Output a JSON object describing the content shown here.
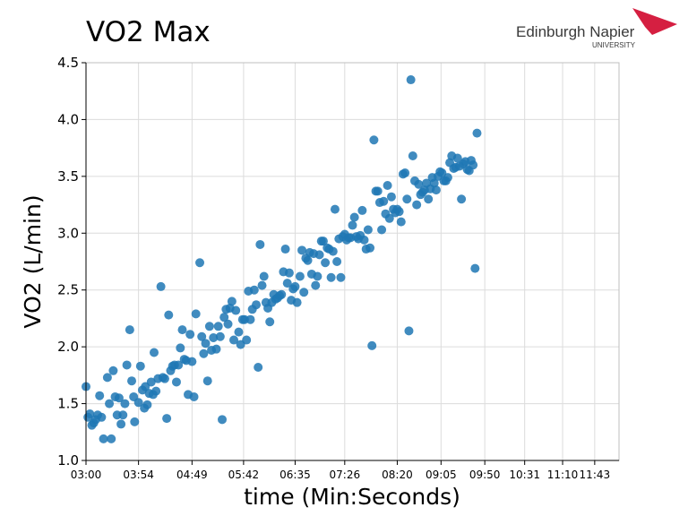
{
  "title": "VO2 Max",
  "logo": {
    "name": "Edinburgh Napier",
    "sub": "UNIVERSITY",
    "accent": "#d51f41"
  },
  "chart_data": {
    "type": "scatter",
    "title": "VO2 Max",
    "xlabel": "time (Min:Seconds)",
    "ylabel": "VO2  (L/min)",
    "ylim": [
      1.0,
      4.5
    ],
    "xlim_seconds": [
      180,
      728
    ],
    "x_ticks": [
      "03:00",
      "03:54",
      "04:49",
      "05:42",
      "06:35",
      "07:26",
      "08:20",
      "09:05",
      "09:50",
      "10:31",
      "11:10",
      "11:43"
    ],
    "y_ticks": [
      "1.0",
      "1.5",
      "2.0",
      "2.5",
      "3.0",
      "3.5",
      "4.0",
      "4.5"
    ],
    "grid": true,
    "color": "#1f77b4",
    "points": [
      [
        "03:00",
        1.65
      ],
      [
        "03:02",
        1.38
      ],
      [
        "03:04",
        1.41
      ],
      [
        "03:06",
        1.31
      ],
      [
        "03:08",
        1.33
      ],
      [
        "03:10",
        1.36
      ],
      [
        "03:12",
        1.4
      ],
      [
        "03:14",
        1.57
      ],
      [
        "03:16",
        1.38
      ],
      [
        "03:18",
        1.19
      ],
      [
        "03:22",
        1.73
      ],
      [
        "03:24",
        1.5
      ],
      [
        "03:26",
        1.19
      ],
      [
        "03:28",
        1.79
      ],
      [
        "03:30",
        1.56
      ],
      [
        "03:32",
        1.4
      ],
      [
        "03:34",
        1.55
      ],
      [
        "03:36",
        1.32
      ],
      [
        "03:38",
        1.4
      ],
      [
        "03:40",
        1.5
      ],
      [
        "03:42",
        1.84
      ],
      [
        "03:45",
        2.15
      ],
      [
        "03:47",
        1.7
      ],
      [
        "03:49",
        1.56
      ],
      [
        "03:50",
        1.34
      ],
      [
        "03:54",
        1.51
      ],
      [
        "03:56",
        1.83
      ],
      [
        "03:58",
        1.62
      ],
      [
        "04:00",
        1.46
      ],
      [
        "04:01",
        1.65
      ],
      [
        "04:03",
        1.49
      ],
      [
        "04:05",
        1.59
      ],
      [
        "04:07",
        1.69
      ],
      [
        "04:09",
        1.58
      ],
      [
        "04:10",
        1.95
      ],
      [
        "04:12",
        1.61
      ],
      [
        "04:14",
        1.72
      ],
      [
        "04:17",
        2.53
      ],
      [
        "04:19",
        1.73
      ],
      [
        "04:21",
        1.72
      ],
      [
        "04:23",
        1.37
      ],
      [
        "04:25",
        2.28
      ],
      [
        "04:27",
        1.79
      ],
      [
        "04:29",
        1.83
      ],
      [
        "04:31",
        1.84
      ],
      [
        "04:33",
        1.69
      ],
      [
        "04:35",
        1.84
      ],
      [
        "04:37",
        1.99
      ],
      [
        "04:39",
        2.15
      ],
      [
        "04:41",
        1.89
      ],
      [
        "04:43",
        1.88
      ],
      [
        "04:45",
        1.58
      ],
      [
        "04:47",
        2.11
      ],
      [
        "04:49",
        1.87
      ],
      [
        "04:51",
        1.56
      ],
      [
        "04:53",
        2.29
      ],
      [
        "04:57",
        2.74
      ],
      [
        "04:59",
        2.09
      ],
      [
        "05:01",
        1.94
      ],
      [
        "05:03",
        2.03
      ],
      [
        "05:05",
        1.7
      ],
      [
        "05:07",
        2.18
      ],
      [
        "05:09",
        1.97
      ],
      [
        "05:11",
        2.08
      ],
      [
        "05:14",
        1.98
      ],
      [
        "05:16",
        2.18
      ],
      [
        "05:18",
        2.09
      ],
      [
        "05:20",
        1.36
      ],
      [
        "05:22",
        2.26
      ],
      [
        "05:24",
        2.33
      ],
      [
        "05:26",
        2.2
      ],
      [
        "05:28",
        2.34
      ],
      [
        "05:30",
        2.4
      ],
      [
        "05:32",
        2.06
      ],
      [
        "05:34",
        2.32
      ],
      [
        "05:37",
        2.13
      ],
      [
        "05:39",
        2.02
      ],
      [
        "05:41",
        2.24
      ],
      [
        "05:43",
        2.24
      ],
      [
        "05:45",
        2.06
      ],
      [
        "05:47",
        2.49
      ],
      [
        "05:49",
        2.24
      ],
      [
        "05:51",
        2.33
      ],
      [
        "05:53",
        2.5
      ],
      [
        "05:55",
        2.37
      ],
      [
        "05:57",
        1.82
      ],
      [
        "05:59",
        2.9
      ],
      [
        "06:01",
        2.54
      ],
      [
        "06:03",
        2.62
      ],
      [
        "06:05",
        2.39
      ],
      [
        "06:07",
        2.34
      ],
      [
        "06:09",
        2.22
      ],
      [
        "06:11",
        2.39
      ],
      [
        "06:13",
        2.46
      ],
      [
        "06:15",
        2.42
      ],
      [
        "06:17",
        2.43
      ],
      [
        "06:19",
        2.45
      ],
      [
        "06:21",
        2.46
      ],
      [
        "06:23",
        2.66
      ],
      [
        "06:25",
        2.86
      ],
      [
        "06:27",
        2.56
      ],
      [
        "06:29",
        2.65
      ],
      [
        "06:31",
        2.41
      ],
      [
        "06:33",
        2.51
      ],
      [
        "06:35",
        2.53
      ],
      [
        "06:37",
        2.39
      ],
      [
        "06:40",
        2.62
      ],
      [
        "06:42",
        2.85
      ],
      [
        "06:44",
        2.48
      ],
      [
        "06:46",
        2.78
      ],
      [
        "06:48",
        2.76
      ],
      [
        "06:50",
        2.83
      ],
      [
        "06:52",
        2.64
      ],
      [
        "06:54",
        2.82
      ],
      [
        "06:56",
        2.54
      ],
      [
        "06:58",
        2.62
      ],
      [
        "07:00",
        2.81
      ],
      [
        "07:02",
        2.93
      ],
      [
        "07:04",
        2.93
      ],
      [
        "07:06",
        2.74
      ],
      [
        "07:08",
        2.87
      ],
      [
        "07:10",
        2.86
      ],
      [
        "07:12",
        2.61
      ],
      [
        "07:14",
        2.84
      ],
      [
        "07:16",
        3.21
      ],
      [
        "07:18",
        2.75
      ],
      [
        "07:20",
        2.95
      ],
      [
        "07:22",
        2.61
      ],
      [
        "07:24",
        2.97
      ],
      [
        "07:26",
        2.99
      ],
      [
        "07:28",
        2.94
      ],
      [
        "07:30",
        2.96
      ],
      [
        "07:32",
        2.96
      ],
      [
        "07:34",
        3.07
      ],
      [
        "07:36",
        3.14
      ],
      [
        "07:38",
        2.97
      ],
      [
        "07:40",
        2.95
      ],
      [
        "07:42",
        2.98
      ],
      [
        "07:44",
        3.2
      ],
      [
        "07:46",
        2.94
      ],
      [
        "07:48",
        2.86
      ],
      [
        "07:50",
        3.03
      ],
      [
        "07:52",
        2.87
      ],
      [
        "07:54",
        2.01
      ],
      [
        "07:56",
        3.82
      ],
      [
        "07:58",
        3.37
      ],
      [
        "08:00",
        3.37
      ],
      [
        "08:02",
        3.27
      ],
      [
        "08:04",
        3.03
      ],
      [
        "08:06",
        3.28
      ],
      [
        "08:08",
        3.17
      ],
      [
        "08:10",
        3.42
      ],
      [
        "08:12",
        3.13
      ],
      [
        "08:14",
        3.32
      ],
      [
        "08:16",
        3.21
      ],
      [
        "08:18",
        3.18
      ],
      [
        "08:20",
        3.21
      ],
      [
        "08:22",
        3.19
      ],
      [
        "08:24",
        3.1
      ],
      [
        "08:26",
        3.52
      ],
      [
        "08:28",
        3.53
      ],
      [
        "08:30",
        3.3
      ],
      [
        "08:32",
        2.14
      ],
      [
        "08:34",
        4.35
      ],
      [
        "08:36",
        3.68
      ],
      [
        "08:38",
        3.46
      ],
      [
        "08:40",
        3.25
      ],
      [
        "08:42",
        3.43
      ],
      [
        "08:44",
        3.34
      ],
      [
        "08:46",
        3.36
      ],
      [
        "08:48",
        3.38
      ],
      [
        "08:50",
        3.44
      ],
      [
        "08:52",
        3.3
      ],
      [
        "08:54",
        3.39
      ],
      [
        "08:56",
        3.49
      ],
      [
        "08:58",
        3.44
      ],
      [
        "09:00",
        3.38
      ],
      [
        "09:02",
        3.5
      ],
      [
        "09:04",
        3.54
      ],
      [
        "09:06",
        3.53
      ],
      [
        "09:08",
        3.46
      ],
      [
        "09:10",
        3.46
      ],
      [
        "09:12",
        3.49
      ],
      [
        "09:14",
        3.62
      ],
      [
        "09:16",
        3.68
      ],
      [
        "09:18",
        3.57
      ],
      [
        "09:20",
        3.58
      ],
      [
        "09:22",
        3.66
      ],
      [
        "09:24",
        3.59
      ],
      [
        "09:26",
        3.3
      ],
      [
        "09:28",
        3.61
      ],
      [
        "09:30",
        3.63
      ],
      [
        "09:32",
        3.56
      ],
      [
        "09:34",
        3.55
      ],
      [
        "09:36",
        3.64
      ],
      [
        "09:38",
        3.6
      ],
      [
        "09:40",
        2.69
      ],
      [
        "09:42",
        3.88
      ]
    ]
  }
}
